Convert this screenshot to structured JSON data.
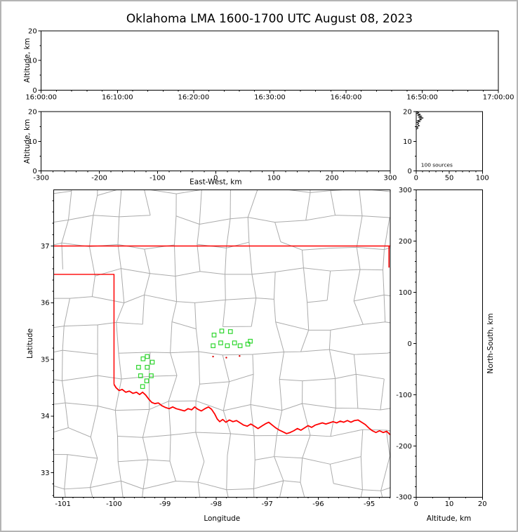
{
  "title": "Oklahoma LMA 1600-1700 UTC August 08, 2023",
  "colors": {
    "axes": "#000000",
    "county_lines": "#ababab",
    "state_border": "#ff0000",
    "vhf_source_marker": "#2dd62d",
    "flash_marker": "#e00000",
    "histogram_trace": "#000000",
    "background": "#ffffff",
    "frame": "#b4b4b4"
  },
  "chart_data": {
    "type": "scatter",
    "title": "Oklahoma LMA 1600-1700 UTC August 08, 2023",
    "panels": {
      "time_height": {
        "ylabel": "Altitude, km",
        "x_tick_labels": [
          "16:00:00",
          "16:10:00",
          "16:20:00",
          "16:30:00",
          "16:40:00",
          "16:50:00",
          "17:00:00"
        ],
        "x_tick_values": [
          0,
          10,
          20,
          30,
          40,
          50,
          60
        ],
        "x_range": [
          0,
          60
        ],
        "y_tick_labels": [
          "0",
          "10",
          "20"
        ],
        "y_tick_values": [
          0,
          10,
          20
        ],
        "y_range": [
          0,
          20
        ],
        "points": []
      },
      "ew_height": {
        "xlabel": "East-West, km",
        "ylabel": "Altitude, km",
        "x_tick_labels": [
          "-300",
          "-200",
          "-100",
          "0",
          "100",
          "200",
          "300"
        ],
        "x_tick_values": [
          -300,
          -200,
          -100,
          0,
          100,
          200,
          300
        ],
        "x_range": [
          -300,
          300
        ],
        "y_tick_labels": [
          "0",
          "10",
          "20"
        ],
        "y_tick_values": [
          0,
          10,
          20
        ],
        "y_range": [
          0,
          20
        ],
        "points": []
      },
      "height_histogram": {
        "annotation": "100 sources",
        "x_tick_labels": [
          "0",
          "50",
          "100"
        ],
        "x_tick_values": [
          0,
          50,
          100
        ],
        "x_range": [
          0,
          100
        ],
        "y_tick_labels": [
          "0",
          "10",
          "20"
        ],
        "y_tick_values": [
          0,
          10,
          20
        ],
        "y_range": [
          0,
          20
        ],
        "profile_count_altitude": [
          [
            0,
            20
          ],
          [
            4,
            19.7
          ],
          [
            1,
            19.4
          ],
          [
            7,
            19.1
          ],
          [
            2,
            18.8
          ],
          [
            9,
            18.5
          ],
          [
            3,
            18.2
          ],
          [
            11,
            17.9
          ],
          [
            5,
            17.6
          ],
          [
            8,
            17.3
          ],
          [
            2,
            17.0
          ],
          [
            6,
            16.7
          ],
          [
            1,
            16.4
          ],
          [
            4,
            16.1
          ],
          [
            2,
            15.7
          ],
          [
            5,
            15.3
          ],
          [
            1,
            14.9
          ],
          [
            3,
            14.5
          ],
          [
            0,
            14.0
          ]
        ]
      },
      "plan_view": {
        "xlabel": "Longitude",
        "ylabel": "Latitude",
        "x_tick_labels": [
          "-101",
          "-100",
          "-99",
          "-98",
          "-97",
          "-96",
          "-95"
        ],
        "x_tick_values": [
          -101,
          -100,
          -99,
          -98,
          -97,
          -96,
          -95
        ],
        "x_range": [
          -101.18,
          -94.59
        ],
        "y_tick_labels": [
          "33",
          "34",
          "35",
          "36",
          "37"
        ],
        "y_tick_values": [
          33,
          34,
          35,
          36,
          37
        ],
        "y_range": [
          32.57,
          37.99
        ],
        "vhf_sources_lon_lat": [
          [
            -99.43,
            35.01
          ],
          [
            -99.35,
            35.05
          ],
          [
            -99.52,
            34.86
          ],
          [
            -99.35,
            34.86
          ],
          [
            -99.25,
            34.95
          ],
          [
            -99.48,
            34.71
          ],
          [
            -99.36,
            34.62
          ],
          [
            -99.27,
            34.71
          ],
          [
            -99.44,
            34.52
          ],
          [
            -98.04,
            35.43
          ],
          [
            -97.89,
            35.5
          ],
          [
            -97.72,
            35.49
          ],
          [
            -98.06,
            35.24
          ],
          [
            -97.91,
            35.29
          ],
          [
            -97.78,
            35.24
          ],
          [
            -97.64,
            35.29
          ],
          [
            -97.53,
            35.24
          ],
          [
            -97.38,
            35.27
          ],
          [
            -97.33,
            35.32
          ]
        ],
        "flash_dots_lon_lat": [
          [
            -98.06,
            35.05
          ],
          [
            -97.8,
            35.03
          ],
          [
            -97.54,
            35.06
          ]
        ],
        "state_border_polylines": {
          "kansas_oklahoma": [
            [
              -101.18,
              37.0
            ],
            [
              -94.59,
              37.0
            ]
          ],
          "oklahoma_missouri": [
            [
              -94.615,
              37.0
            ],
            [
              -94.615,
              36.62
            ]
          ],
          "texas_panhandle": [
            [
              -101.18,
              36.5
            ],
            [
              -100.0,
              36.5
            ],
            [
              -100.0,
              34.56
            ]
          ],
          "red_river": [
            [
              -100.0,
              34.56
            ],
            [
              -99.96,
              34.5
            ],
            [
              -99.9,
              34.45
            ],
            [
              -99.84,
              34.47
            ],
            [
              -99.77,
              34.42
            ],
            [
              -99.7,
              34.44
            ],
            [
              -99.63,
              34.4
            ],
            [
              -99.56,
              34.42
            ],
            [
              -99.5,
              34.38
            ],
            [
              -99.44,
              34.42
            ],
            [
              -99.38,
              34.37
            ],
            [
              -99.32,
              34.3
            ],
            [
              -99.26,
              34.24
            ],
            [
              -99.2,
              34.22
            ],
            [
              -99.13,
              34.23
            ],
            [
              -99.06,
              34.18
            ],
            [
              -98.99,
              34.15
            ],
            [
              -98.92,
              34.13
            ],
            [
              -98.85,
              34.16
            ],
            [
              -98.78,
              34.13
            ],
            [
              -98.7,
              34.11
            ],
            [
              -98.62,
              34.09
            ],
            [
              -98.55,
              34.13
            ],
            [
              -98.48,
              34.11
            ],
            [
              -98.42,
              34.16
            ],
            [
              -98.36,
              34.12
            ],
            [
              -98.29,
              34.09
            ],
            [
              -98.22,
              34.13
            ],
            [
              -98.15,
              34.16
            ],
            [
              -98.09,
              34.12
            ],
            [
              -98.03,
              34.04
            ],
            [
              -97.98,
              33.95
            ],
            [
              -97.93,
              33.9
            ],
            [
              -97.87,
              33.94
            ],
            [
              -97.81,
              33.89
            ],
            [
              -97.74,
              33.93
            ],
            [
              -97.67,
              33.9
            ],
            [
              -97.6,
              33.92
            ],
            [
              -97.53,
              33.88
            ],
            [
              -97.46,
              33.84
            ],
            [
              -97.39,
              33.82
            ],
            [
              -97.32,
              33.86
            ],
            [
              -97.25,
              33.82
            ],
            [
              -97.18,
              33.78
            ],
            [
              -97.11,
              33.82
            ],
            [
              -97.04,
              33.86
            ],
            [
              -96.97,
              33.89
            ],
            [
              -96.9,
              33.84
            ],
            [
              -96.83,
              33.79
            ],
            [
              -96.76,
              33.75
            ],
            [
              -96.69,
              33.72
            ],
            [
              -96.62,
              33.69
            ],
            [
              -96.55,
              33.71
            ],
            [
              -96.48,
              33.74
            ],
            [
              -96.41,
              33.78
            ],
            [
              -96.34,
              33.75
            ],
            [
              -96.27,
              33.79
            ],
            [
              -96.2,
              33.83
            ],
            [
              -96.13,
              33.8
            ],
            [
              -96.06,
              33.84
            ],
            [
              -95.99,
              33.86
            ],
            [
              -95.92,
              33.88
            ],
            [
              -95.85,
              33.86
            ],
            [
              -95.78,
              33.88
            ],
            [
              -95.71,
              33.9
            ],
            [
              -95.64,
              33.88
            ],
            [
              -95.57,
              33.91
            ],
            [
              -95.5,
              33.89
            ],
            [
              -95.43,
              33.92
            ],
            [
              -95.36,
              33.89
            ],
            [
              -95.29,
              33.92
            ],
            [
              -95.22,
              33.93
            ],
            [
              -95.15,
              33.89
            ],
            [
              -95.08,
              33.85
            ],
            [
              -95.01,
              33.79
            ],
            [
              -94.94,
              33.74
            ],
            [
              -94.87,
              33.71
            ],
            [
              -94.8,
              33.74
            ],
            [
              -94.73,
              33.71
            ],
            [
              -94.66,
              33.73
            ],
            [
              -94.59,
              33.67
            ]
          ]
        }
      },
      "ns_height": {
        "xlabel": "Altitude, km",
        "ylabel": "North-South, km",
        "x_tick_labels": [
          "0",
          "10",
          "20"
        ],
        "x_tick_values": [
          0,
          10,
          20
        ],
        "x_range": [
          0,
          20
        ],
        "y_tick_labels": [
          "-300",
          "-200",
          "-100",
          "0",
          "100",
          "200",
          "300"
        ],
        "y_tick_values": [
          -300,
          -200,
          -100,
          0,
          100,
          200,
          300
        ],
        "y_range": [
          -300,
          300
        ],
        "points": []
      }
    }
  }
}
